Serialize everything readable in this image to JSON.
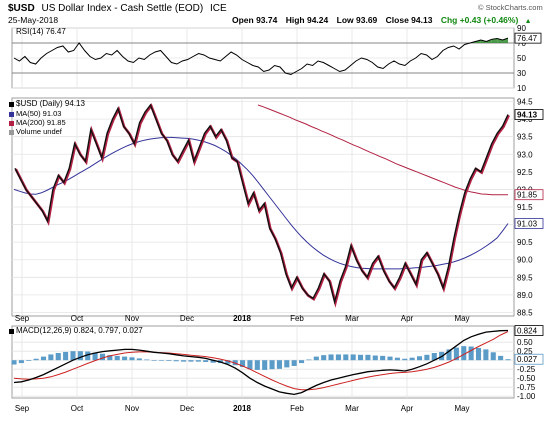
{
  "header": {
    "symbol": "$USD",
    "description": "US Dollar Index - Cash Settle (EOD)",
    "exchange": "ICE",
    "date": "25-May-2018",
    "quote": {
      "open": "Open 93.74",
      "high": "High 94.24",
      "low": "Low 93.69",
      "close": "Close 94.13",
      "change": "Chg +0.43 (+0.46%)"
    },
    "arrow": "▲",
    "watermark": "© StockCharts.com"
  },
  "colors": {
    "background": "#ffffff",
    "grid": "#e4e4e4",
    "rsi_line": "#000000",
    "rsi_fill": "#2e8b2e",
    "price_line": "#111111",
    "price_shadow": "#b22244",
    "ma50": "#333399",
    "ma200": "#b22244",
    "macd": "#000000",
    "signal": "#cc2222",
    "histogram": "#5b9bc8",
    "change_up": "#118811"
  },
  "chart_data": [
    {
      "type": "line",
      "panel": "rsi",
      "legend": "RSI(14) 76.47",
      "ylim": [
        10,
        90
      ],
      "y_ticks": [
        "90",
        "70",
        "50",
        "30",
        "10"
      ],
      "reference_lines": [
        70,
        30
      ],
      "last_value_label": "76.47",
      "series": [
        {
          "name": "RSI(14)",
          "values": [
            50,
            46,
            52,
            44,
            42,
            50,
            56,
            60,
            64,
            66,
            58,
            60,
            70,
            60,
            52,
            48,
            50,
            56,
            54,
            60,
            52,
            46,
            44,
            50,
            48,
            54,
            58,
            60,
            52,
            44,
            42,
            46,
            48,
            52,
            56,
            54,
            50,
            48,
            46,
            52,
            58,
            54,
            48,
            44,
            40,
            38,
            32,
            34,
            40,
            38,
            30,
            28,
            32,
            36,
            42,
            40,
            46,
            44,
            40,
            36,
            32,
            34,
            40,
            46,
            50,
            48,
            44,
            38,
            36,
            42,
            46,
            42,
            40,
            46,
            50,
            56,
            54,
            48,
            52,
            60,
            64,
            66,
            62,
            68,
            70,
            72,
            74,
            72,
            75,
            76,
            74,
            76.47
          ]
        }
      ]
    },
    {
      "type": "line",
      "panel": "price",
      "legend": [
        "$USD (Daily) 94.13",
        "MA(50) 91.03",
        "MA(200) 91.85",
        "Volume undef"
      ],
      "ylim": [
        88.4,
        94.6
      ],
      "y_ticks": [
        "94.5",
        "94.0",
        "93.5",
        "93.0",
        "92.5",
        "92.0",
        "91.5",
        "91.0",
        "90.5",
        "90.0",
        "89.5",
        "89.0",
        "88.5"
      ],
      "value_tags": [
        {
          "label": "94.13",
          "value": 94.13
        },
        {
          "label": "91.85",
          "value": 91.85
        },
        {
          "label": "91.03",
          "value": 91.03
        }
      ],
      "series": [
        {
          "name": "$USD (Daily)",
          "values": [
            92.6,
            92.3,
            92.0,
            91.8,
            91.6,
            91.4,
            91.1,
            92.0,
            92.4,
            92.2,
            92.6,
            93.3,
            93.0,
            92.8,
            93.7,
            93.3,
            92.9,
            93.6,
            94.0,
            94.3,
            93.8,
            93.6,
            93.3,
            93.9,
            94.2,
            94.4,
            94.0,
            93.6,
            93.4,
            93.0,
            92.8,
            93.1,
            93.4,
            92.8,
            93.2,
            93.6,
            93.8,
            93.5,
            93.7,
            93.4,
            92.9,
            92.8,
            92.2,
            91.6,
            91.9,
            91.4,
            91.6,
            90.9,
            90.6,
            90.2,
            89.6,
            89.2,
            89.5,
            89.2,
            89.0,
            88.9,
            89.2,
            89.6,
            89.4,
            88.8,
            89.4,
            89.8,
            90.4,
            90.0,
            89.7,
            89.5,
            89.9,
            90.1,
            89.7,
            89.4,
            89.2,
            89.5,
            89.9,
            89.6,
            89.3,
            90.0,
            90.2,
            89.9,
            89.6,
            89.2,
            89.8,
            90.6,
            91.3,
            91.9,
            92.3,
            92.6,
            92.5,
            92.9,
            93.3,
            93.6,
            93.8,
            94.13
          ]
        },
        {
          "name": "MA(50)",
          "values": [
            92.0,
            91.95,
            91.9,
            91.87,
            91.86,
            91.9,
            91.97,
            92.05,
            92.13,
            92.2,
            92.28,
            92.37,
            92.46,
            92.55,
            92.64,
            92.74,
            92.84,
            92.93,
            93.02,
            93.1,
            93.18,
            93.25,
            93.31,
            93.36,
            93.4,
            93.43,
            93.45,
            93.47,
            93.48,
            93.48,
            93.47,
            93.46,
            93.45,
            93.43,
            93.4,
            93.36,
            93.31,
            93.25,
            93.17,
            93.08,
            92.97,
            92.85,
            92.71,
            92.56,
            92.39,
            92.2,
            92.0,
            91.8,
            91.6,
            91.4,
            91.2,
            91.0,
            90.82,
            90.65,
            90.5,
            90.36,
            90.24,
            90.13,
            90.04,
            89.96,
            89.9,
            89.85,
            89.81,
            89.78,
            89.76,
            89.75,
            89.74,
            89.74,
            89.74,
            89.74,
            89.74,
            89.74,
            89.75,
            89.76,
            89.77,
            89.78,
            89.8,
            89.82,
            89.84,
            89.87,
            89.9,
            89.94,
            89.99,
            90.05,
            90.12,
            90.2,
            90.29,
            90.39,
            90.5,
            90.62,
            90.82,
            91.03
          ]
        },
        {
          "name": "MA(200)",
          "values": [
            94.4,
            94.35,
            94.29,
            94.23,
            94.17,
            94.11,
            94.05,
            93.98,
            93.92,
            93.86,
            93.79,
            93.73,
            93.66,
            93.6,
            93.53,
            93.46,
            93.4,
            93.33,
            93.26,
            93.2,
            93.13,
            93.06,
            93.0,
            92.93,
            92.87,
            92.8,
            92.73,
            92.67,
            92.61,
            92.55,
            92.49,
            92.43,
            92.37,
            92.31,
            92.25,
            92.19,
            92.13,
            92.07,
            92.02,
            91.97,
            91.93,
            91.9,
            91.87,
            91.86,
            91.85,
            91.85,
            91.85,
            91.85
          ]
        }
      ]
    },
    {
      "type": "line",
      "panel": "macd",
      "legend": [
        "MACD(12,26,9) 0.824, 0.797, 0.027"
      ],
      "ylim": [
        -1.05,
        0.95
      ],
      "y_ticks": [
        "0.50",
        "0.25",
        "0.00",
        "-0.25",
        "-0.50",
        "-0.75",
        "-1.00"
      ],
      "value_tags": [
        {
          "label": "0.824",
          "value": 0.824
        },
        {
          "label": "0.027",
          "value": 0.027
        }
      ],
      "series": [
        {
          "name": "MACD",
          "values": [
            -0.62,
            -0.6,
            -0.55,
            -0.48,
            -0.4,
            -0.3,
            -0.2,
            -0.1,
            0.0,
            0.08,
            0.15,
            0.2,
            0.24,
            0.26,
            0.28,
            0.3,
            0.3,
            0.28,
            0.25,
            0.22,
            0.2,
            0.18,
            0.15,
            0.12,
            0.1,
            0.08,
            0.05,
            0.0,
            -0.05,
            -0.12,
            -0.22,
            -0.35,
            -0.5,
            -0.62,
            -0.72,
            -0.8,
            -0.88,
            -0.92,
            -0.95,
            -0.9,
            -0.8,
            -0.7,
            -0.62,
            -0.55,
            -0.5,
            -0.45,
            -0.4,
            -0.36,
            -0.32,
            -0.3,
            -0.28,
            -0.27,
            -0.28,
            -0.3,
            -0.25,
            -0.18,
            -0.1,
            0.0,
            0.1,
            0.25,
            0.4,
            0.55,
            0.65,
            0.72,
            0.78,
            0.8,
            0.82,
            0.824
          ]
        },
        {
          "name": "Signal",
          "values": [
            -0.5,
            -0.52,
            -0.53,
            -0.52,
            -0.5,
            -0.46,
            -0.4,
            -0.33,
            -0.25,
            -0.17,
            -0.09,
            -0.01,
            0.06,
            0.12,
            0.16,
            0.2,
            0.22,
            0.23,
            0.23,
            0.22,
            0.21,
            0.2,
            0.18,
            0.16,
            0.14,
            0.12,
            0.1,
            0.07,
            0.03,
            -0.02,
            -0.08,
            -0.16,
            -0.25,
            -0.35,
            -0.45,
            -0.55,
            -0.64,
            -0.72,
            -0.79,
            -0.82,
            -0.82,
            -0.8,
            -0.76,
            -0.71,
            -0.66,
            -0.61,
            -0.56,
            -0.51,
            -0.47,
            -0.43,
            -0.4,
            -0.37,
            -0.35,
            -0.34,
            -0.32,
            -0.29,
            -0.25,
            -0.2,
            -0.13,
            -0.05,
            0.05,
            0.16,
            0.27,
            0.38,
            0.48,
            0.58,
            0.7,
            0.797
          ]
        },
        {
          "name": "Histogram",
          "values": [
            -0.12,
            -0.08,
            -0.02,
            0.04,
            0.1,
            0.16,
            0.2,
            0.23,
            0.25,
            0.25,
            0.24,
            0.21,
            0.18,
            0.14,
            0.12,
            0.1,
            0.08,
            0.05,
            0.02,
            0.0,
            -0.01,
            -0.02,
            -0.03,
            -0.04,
            -0.04,
            -0.04,
            -0.05,
            -0.07,
            -0.08,
            -0.1,
            -0.14,
            -0.19,
            -0.25,
            -0.27,
            -0.27,
            -0.25,
            -0.24,
            -0.2,
            -0.16,
            -0.08,
            0.02,
            0.1,
            0.14,
            0.16,
            0.16,
            0.16,
            0.16,
            0.15,
            0.15,
            0.13,
            0.12,
            0.1,
            0.07,
            0.04,
            0.07,
            0.11,
            0.15,
            0.2,
            0.23,
            0.3,
            0.35,
            0.39,
            0.38,
            0.34,
            0.3,
            0.22,
            0.12,
            0.027
          ]
        }
      ]
    }
  ],
  "x_axis": {
    "labels": [
      "Sep",
      "Oct",
      "Nov",
      "Dec",
      "2018",
      "Feb",
      "Mar",
      "Apr",
      "May"
    ],
    "bold": [
      "2018"
    ]
  }
}
